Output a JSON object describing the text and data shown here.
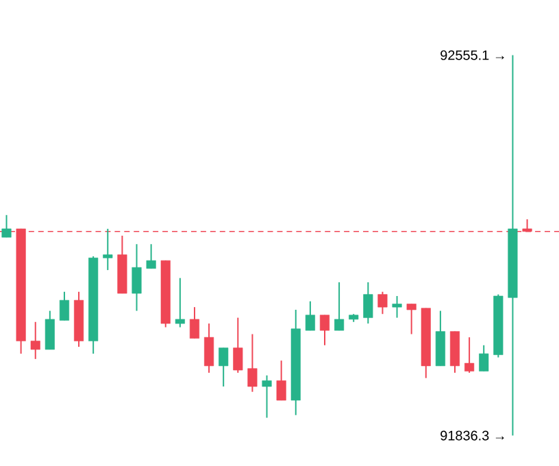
{
  "chart_data": {
    "type": "candlestick",
    "categories": [
      null,
      null,
      null,
      null,
      null,
      null,
      null,
      null,
      null,
      null,
      null,
      null,
      null,
      null,
      null,
      null,
      null,
      null,
      null,
      null,
      null,
      null,
      null,
      null,
      null,
      null,
      null,
      null,
      null,
      null,
      null,
      null,
      null,
      null,
      null,
      null,
      null
    ],
    "ohlc": [
      [
        92211,
        92253,
        92211,
        92227
      ],
      [
        92227,
        92227,
        91991,
        92015
      ],
      [
        92015,
        92051,
        91981,
        91999
      ],
      [
        91999,
        92072,
        91999,
        92056
      ],
      [
        92054,
        92108,
        92054,
        92092
      ],
      [
        92092,
        92108,
        92004,
        92015
      ],
      [
        92015,
        92175,
        91991,
        92172
      ],
      [
        92172,
        92227,
        92149,
        92178
      ],
      [
        92178,
        92214,
        92105,
        92105
      ],
      [
        92105,
        92198,
        92072,
        92154
      ],
      [
        92152,
        92198,
        92152,
        92167
      ],
      [
        92167,
        92167,
        92041,
        92048
      ],
      [
        92048,
        92134,
        92041,
        92056
      ],
      [
        92056,
        92079,
        92020,
        92020
      ],
      [
        92022,
        92048,
        91955,
        91968
      ],
      [
        91968,
        92002,
        91929,
        92002
      ],
      [
        92002,
        92059,
        91955,
        91960
      ],
      [
        91963,
        92028,
        91919,
        91929
      ],
      [
        91929,
        91950,
        91870,
        91940
      ],
      [
        91940,
        91978,
        91903,
        91903
      ],
      [
        91903,
        92074,
        91875,
        92038
      ],
      [
        92035,
        92090,
        92035,
        92064
      ],
      [
        92064,
        92064,
        92007,
        92035
      ],
      [
        92035,
        92126,
        92035,
        92056
      ],
      [
        92056,
        92066,
        92051,
        92064
      ],
      [
        92059,
        92126,
        92048,
        92103
      ],
      [
        92103,
        92108,
        92066,
        92079
      ],
      [
        92079,
        92100,
        92059,
        92085
      ],
      [
        92085,
        92085,
        92028,
        92074
      ],
      [
        92077,
        92077,
        91945,
        91968
      ],
      [
        91968,
        92072,
        91968,
        92033
      ],
      [
        92033,
        92033,
        91955,
        91968
      ],
      [
        91973,
        92022,
        91955,
        91958
      ],
      [
        91958,
        92007,
        91958,
        91991
      ],
      [
        91989,
        92103,
        91984,
        92100
      ],
      [
        92097,
        92555.1,
        91836.3,
        92227
      ],
      [
        92227,
        92245,
        92222,
        92222
      ]
    ],
    "colors": [
      "#26b38a",
      "#ef4655",
      "#ef4655",
      "#26b38a",
      "#26b38a",
      "#ef4655",
      "#26b38a",
      "#26b38a",
      "#ef4655",
      "#26b38a",
      "#26b38a",
      "#ef4655",
      "#26b38a",
      "#ef4655",
      "#ef4655",
      "#26b38a",
      "#ef4655",
      "#ef4655",
      "#26b38a",
      "#ef4655",
      "#26b38a",
      "#26b38a",
      "#ef4655",
      "#26b38a",
      "#26b38a",
      "#26b38a",
      "#ef4655",
      "#26b38a",
      "#ef4655",
      "#ef4655",
      "#26b38a",
      "#ef4655",
      "#ef4655",
      "#26b38a",
      "#26b38a",
      "#26b38a",
      "#ef4655"
    ],
    "tick_labels": false,
    "ref_lines": [
      {
        "axis": "y",
        "value": 92222,
        "color": "#ef4655",
        "line_style": "dashed"
      }
    ],
    "annotations": [
      "92555.1 →",
      "91836.3 →"
    ]
  }
}
